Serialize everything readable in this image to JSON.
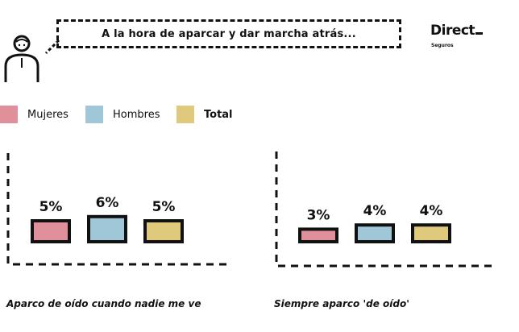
{
  "header": {
    "question": "A la hora de aparcar y dar marcha atrás...",
    "brand_name": "Direct",
    "brand_sub": "Seguros"
  },
  "legend": [
    {
      "label": "Mujeres",
      "color": "#e0909a",
      "bold": false
    },
    {
      "label": "Hombres",
      "color": "#9fc7d8",
      "bold": false
    },
    {
      "label": "Total",
      "color": "#dfc97c",
      "bold": true
    }
  ],
  "chart_data": {
    "type": "bar",
    "unit": "%",
    "series_names": [
      "Mujeres",
      "Hombres",
      "Total"
    ],
    "colors": [
      "#e0909a",
      "#9fc7d8",
      "#dfc97c"
    ],
    "groups": [
      {
        "caption": "Aparco de oído cuando nadie me ve",
        "values": [
          5,
          6,
          5
        ],
        "labels": [
          "5%",
          "6%",
          "5%"
        ]
      },
      {
        "caption": "Siempre aparco 'de oído'",
        "values": [
          3,
          4,
          4
        ],
        "labels": [
          "3%",
          "4%",
          "4%"
        ]
      }
    ]
  }
}
